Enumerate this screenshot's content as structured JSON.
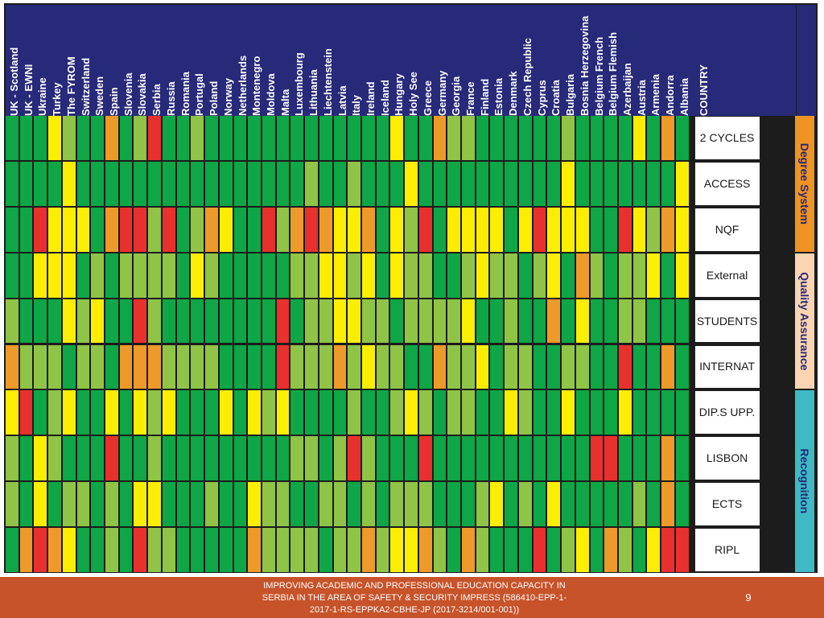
{
  "chart_data": {
    "type": "heatmap",
    "title": "",
    "colors": {
      "G": "#0ea646",
      "L": "#8fc447",
      "Y": "#fcee02",
      "O": "#ee9a2a",
      "R": "#e8312e",
      "header_bg": "#262a78",
      "degree_system": "#ef9324",
      "quality_assurance": "#fbd4b2",
      "recognition": "#3fbac4",
      "footer_bg": "#c7532a"
    },
    "color_legend": {
      "G": "dark green",
      "L": "light green",
      "Y": "yellow",
      "O": "orange",
      "R": "red"
    },
    "column_header_label": "COUNTRY",
    "countries": [
      "UK - Scotland",
      "UK - EWNI",
      "Ukraine",
      "Turkey",
      "The FYROM",
      "Switzerland",
      "Sweden",
      "Spain",
      "Slovenia",
      "Slovakia",
      "Serbia",
      "Russia",
      "Romania",
      "Portugal",
      "Poland",
      "Norway",
      "Netherlands",
      "Montenegro",
      "Moldova",
      "Malta",
      "Luxembourg",
      "Lithuania",
      "Liechtenstein",
      "Latvia",
      "Italy",
      "Ireland",
      "Iceland",
      "Hungary",
      "Holy See",
      "Greece",
      "Germany",
      "Georgia",
      "France",
      "Finland",
      "Estonia",
      "Denmark",
      "Czech Republic",
      "Cyprus",
      "Croatia",
      "Bulgaria",
      "Bosnia Herzegovina",
      "Belgium French",
      "Belgium Flemish",
      "Azerbaijan",
      "Austria",
      "Armenia",
      "Andorra",
      "Albania"
    ],
    "rows": [
      {
        "label": "2 CYCLES",
        "group": "Degree System",
        "values": "GGGYLGGOGLRGGLGGGGGGGGGGGGGYGGOLLGGGGGGLGGGGYGOG"
      },
      {
        "label": "ACCESS",
        "group": "Degree System",
        "values": "GGGGYGGGGGGGGGGGGGGGGLGGLGGGYGGGGGGGGGGYGGGGGGGY"
      },
      {
        "label": "NQF",
        "group": "Degree System",
        "values": "GGRYYYGORRLRGLOYGGRLOROYYOGYLRGYYYYGYRYYYGGRYLOY"
      },
      {
        "label": "External",
        "group": "Quality Assurance",
        "values": "GGYYYGLGLLLLGYLGGGGGLLYYLYGYLLGGLYLLGLYGOLGLLYGY"
      },
      {
        "label": "STUDENTS",
        "group": "Quality Assurance",
        "values": "LGGGYLYGGRLGGGGGGGGRGLLYYLLGLLLLYGGLGGOGYGGLLGGG"
      },
      {
        "label": "INTERNAT",
        "group": "Quality Assurance",
        "values": "OLLLGLLGOOOLLLLGGGGRLLLOLYLLGGOLLYGLLGGLLGGRGGOG"
      },
      {
        "label": "DIP.S UPP.",
        "group": "Recognition",
        "values": "YRGLYGGYGYLYGGGYGYLYGGGGLGGLYLGLLGGYLGGYGGGYGGGG"
      },
      {
        "label": "LISBON",
        "group": "Recognition",
        "values": "LGYLGGGRGGLGGGGGGGGGLLGLRLGGGRGGGGGGGGGGGRRGGGOG"
      },
      {
        "label": "ECTS",
        "group": "Recognition",
        "values": "LGYGLLGLGYYGGGLGGYLLGGLLGLGLLLGGGLYGLGYGGGGGLGOG"
      },
      {
        "label": "RIPL",
        "group": "Recognition",
        "values": "GOROYGGLGRLLGGGGGOLLLLGLLOLYYOLGOLGGGRGLYGOLGYRR"
      }
    ],
    "groups": [
      {
        "name": "Degree System",
        "color_key": "degree_system"
      },
      {
        "name": "Quality Assurance",
        "color_key": "quality_assurance"
      },
      {
        "name": "Recognition",
        "color_key": "recognition"
      }
    ]
  },
  "footer": {
    "text": "IMPROVING ACADEMIC AND PROFESSIONAL EDUCATION CAPACITY IN SERBIA IN THE AREA OF SAFETY & SECURITY IMPRESS  (586410-EPP-1-2017-1-RS-EPPKA2-CBHE-JP (2017-3214/001-001))",
    "page_number": "9"
  }
}
